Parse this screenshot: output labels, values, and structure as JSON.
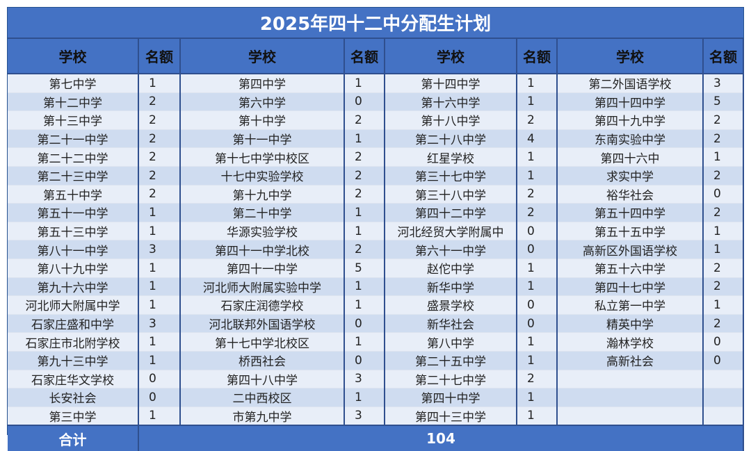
{
  "title": "2025年四十二中分配生计划",
  "headers": {
    "school": "学校",
    "quota": "名额"
  },
  "rows": [
    [
      [
        "第七中学",
        "1"
      ],
      [
        "第四中学",
        "1"
      ],
      [
        "第十四中学",
        "1"
      ],
      [
        "第二外国语学校",
        "3"
      ]
    ],
    [
      [
        "第十二中学",
        "2"
      ],
      [
        "第六中学",
        "0"
      ],
      [
        "第十六中学",
        "1"
      ],
      [
        "第四十四中学",
        "5"
      ]
    ],
    [
      [
        "第十三中学",
        "2"
      ],
      [
        "第十中学",
        "2"
      ],
      [
        "第十八中学",
        "2"
      ],
      [
        "第四十九中学",
        "2"
      ]
    ],
    [
      [
        "第二十一中学",
        "2"
      ],
      [
        "第十一中学",
        "1"
      ],
      [
        "第二十八中学",
        "4"
      ],
      [
        "东南实验中学",
        "2"
      ]
    ],
    [
      [
        "第二十二中学",
        "2"
      ],
      [
        "第十七中学中校区",
        "2"
      ],
      [
        "红星学校",
        "1"
      ],
      [
        "第四十六中",
        "1"
      ]
    ],
    [
      [
        "第二十三中学",
        "2"
      ],
      [
        "十七中实验学校",
        "2"
      ],
      [
        "第三十七中学",
        "1"
      ],
      [
        "求实中学",
        "2"
      ]
    ],
    [
      [
        "第五十中学",
        "2"
      ],
      [
        "第十九中学",
        "2"
      ],
      [
        "第三十八中学",
        "2"
      ],
      [
        "裕华社会",
        "0"
      ]
    ],
    [
      [
        "第五十一中学",
        "1"
      ],
      [
        "第二十中学",
        "1"
      ],
      [
        "第四十二中学",
        "2"
      ],
      [
        "第五十四中学",
        "2"
      ]
    ],
    [
      [
        "第五十三中学",
        "1"
      ],
      [
        "华源实验学校",
        "1"
      ],
      [
        "河北经贸大学附属中",
        "0"
      ],
      [
        "第五十五中学",
        "1"
      ]
    ],
    [
      [
        "第八十一中学",
        "3"
      ],
      [
        "第四十一中学北校",
        "2"
      ],
      [
        "第六十一中学",
        "0"
      ],
      [
        "高新区外国语学校",
        "1"
      ]
    ],
    [
      [
        "第八十九中学",
        "1"
      ],
      [
        "第四十一中学",
        "5"
      ],
      [
        "赵佗中学",
        "1"
      ],
      [
        "第五十六中学",
        "2"
      ]
    ],
    [
      [
        "第九十六中学",
        "1"
      ],
      [
        "河北师大附属实验中学",
        "1"
      ],
      [
        "新华中学",
        "1"
      ],
      [
        "第四十七中学",
        "2"
      ]
    ],
    [
      [
        "河北师大附属中学",
        "1"
      ],
      [
        "石家庄润德学校",
        "1"
      ],
      [
        "盛景学校",
        "0"
      ],
      [
        "私立第一中学",
        "1"
      ]
    ],
    [
      [
        "石家庄盛和中学",
        "3"
      ],
      [
        "河北联邦外国语学校",
        "0"
      ],
      [
        "新华社会",
        "0"
      ],
      [
        "精英中学",
        "2"
      ]
    ],
    [
      [
        "石家庄市北附学校",
        "1"
      ],
      [
        "第十七中学北校区",
        "1"
      ],
      [
        "第八中学",
        "1"
      ],
      [
        "瀚林学校",
        "0"
      ]
    ],
    [
      [
        "第九十三中学",
        "1"
      ],
      [
        "桥西社会",
        "0"
      ],
      [
        "第二十五中学",
        "1"
      ],
      [
        "高新社会",
        "0"
      ]
    ],
    [
      [
        "石家庄华文学校",
        "0"
      ],
      [
        "第四十八中学",
        "3"
      ],
      [
        "第二十七中学",
        "2"
      ],
      [
        "",
        ""
      ]
    ],
    [
      [
        "长安社会",
        "0"
      ],
      [
        "二中西校区",
        "1"
      ],
      [
        "第四十中学",
        "1"
      ],
      [
        "",
        ""
      ]
    ],
    [
      [
        "第三中学",
        "1"
      ],
      [
        "市第九中学",
        "3"
      ],
      [
        "第四十三中学",
        "1"
      ],
      [
        "",
        ""
      ]
    ]
  ],
  "footer": {
    "label": "合计",
    "total": "104"
  },
  "colors": {
    "header": "#4472c4",
    "row_light": "#e8eef8",
    "row_dark": "#cfdcf0",
    "border": "#2f4f8e"
  }
}
